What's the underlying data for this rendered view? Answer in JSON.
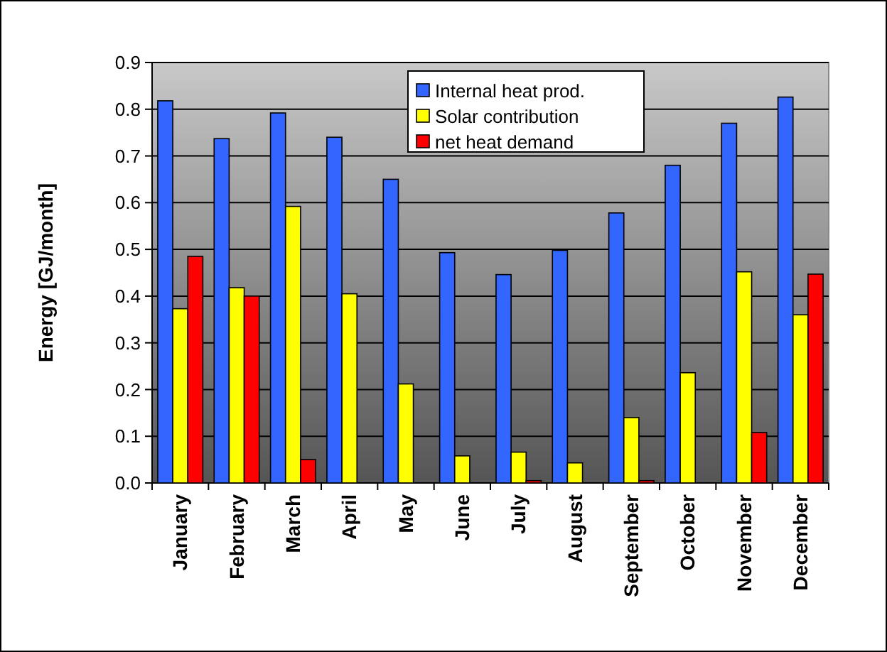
{
  "chart_data": {
    "type": "bar",
    "ylabel": "Energy [GJ/month]",
    "categories": [
      "January",
      "February",
      "March",
      "April",
      "May",
      "June",
      "July",
      "August",
      "September",
      "October",
      "November",
      "December"
    ],
    "series": [
      {
        "name": "Internal heat prod.",
        "color": "#3366ff",
        "values": [
          0.818,
          0.737,
          0.792,
          0.74,
          0.65,
          0.493,
          0.446,
          0.498,
          0.578,
          0.68,
          0.77,
          0.826
        ]
      },
      {
        "name": "Solar contribution",
        "color": "#ffff00",
        "values": [
          0.373,
          0.418,
          0.592,
          0.405,
          0.212,
          0.058,
          0.066,
          0.043,
          0.14,
          0.236,
          0.452,
          0.36
        ]
      },
      {
        "name": "net heat demand",
        "color": "#ff0000",
        "values": [
          0.485,
          0.4,
          0.05,
          0,
          0,
          0,
          0.005,
          0,
          0.005,
          0,
          0.108,
          0.447
        ]
      }
    ],
    "ylim": [
      0,
      0.9
    ],
    "yticks": [
      {
        "value": 0,
        "label": "0.0"
      },
      0.1,
      0.2,
      0.3,
      0.4,
      0.5,
      0.6,
      0.7,
      0.8,
      0.9
    ],
    "grid": "y",
    "legend": "top right"
  }
}
